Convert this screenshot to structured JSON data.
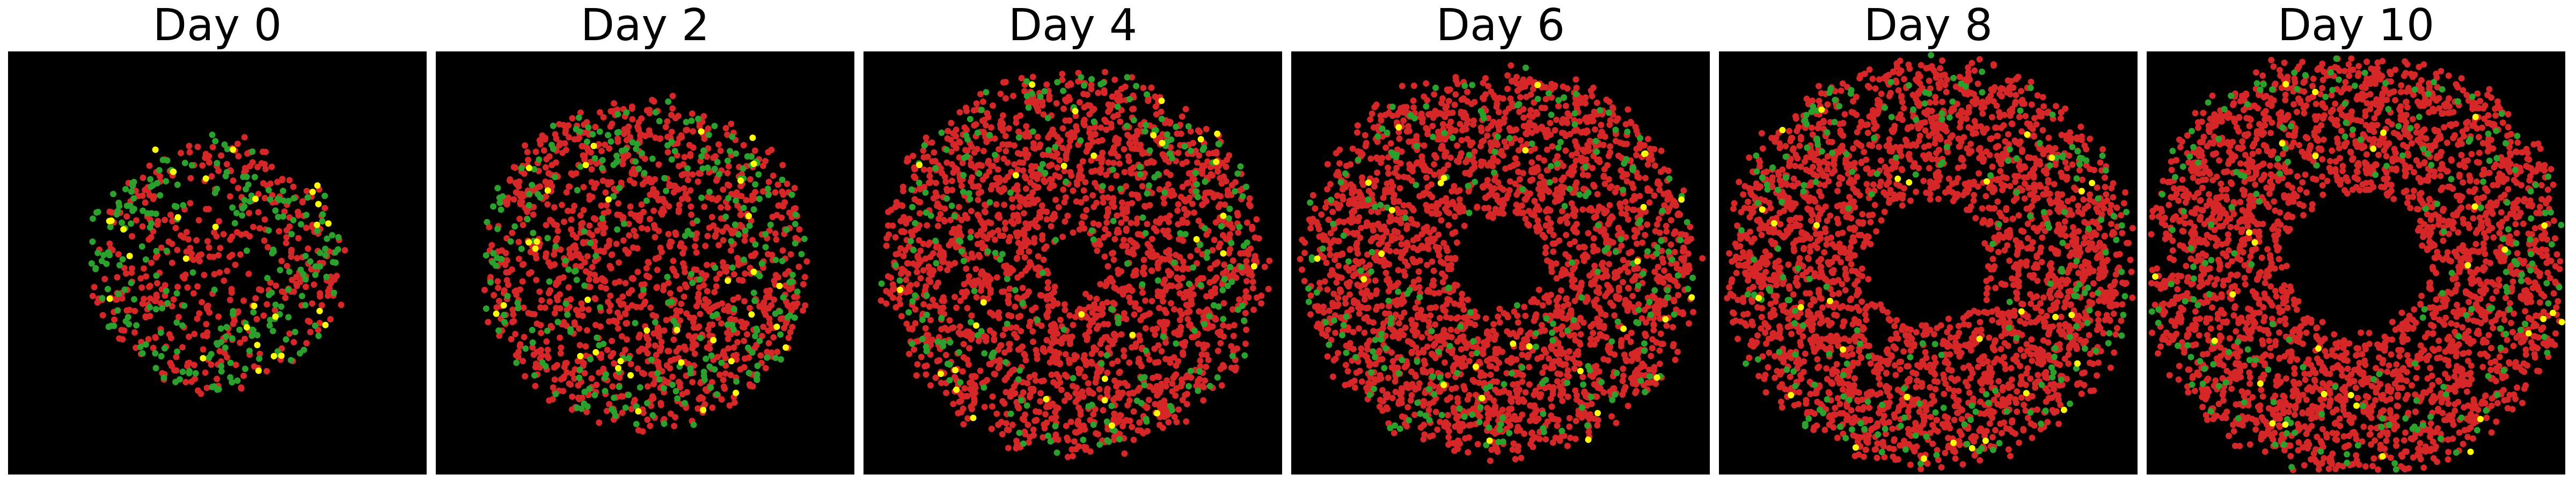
{
  "figure": {
    "background": "#ffffff",
    "plot_background": "#000000"
  },
  "legend_colors": {
    "red": "#d62728",
    "green": "#2ca02c",
    "yellow": "#ffff00"
  },
  "chart_data": [
    {
      "type": "scatter",
      "title": "Day 0",
      "grid": false,
      "axes": "off",
      "series": [
        {
          "color": "#d62728",
          "count": 420
        },
        {
          "color": "#2ca02c",
          "count": 230
        },
        {
          "color": "#ffff00",
          "count": 28
        }
      ],
      "cluster": {
        "center": [
          0.5,
          0.5
        ],
        "outer_radius": 0.3,
        "inner_hole_radius": 0.0
      }
    },
    {
      "type": "scatter",
      "title": "Day 2",
      "grid": false,
      "axes": "off",
      "series": [
        {
          "color": "#d62728",
          "count": 1250
        },
        {
          "color": "#2ca02c",
          "count": 280
        },
        {
          "color": "#ffff00",
          "count": 35
        }
      ],
      "cluster": {
        "center": [
          0.5,
          0.5
        ],
        "outer_radius": 0.39,
        "inner_hole_radius": 0.0
      }
    },
    {
      "type": "scatter",
      "title": "Day 4",
      "grid": false,
      "axes": "off",
      "series": [
        {
          "color": "#d62728",
          "count": 2100
        },
        {
          "color": "#2ca02c",
          "count": 250
        },
        {
          "color": "#ffff00",
          "count": 30
        }
      ],
      "cluster": {
        "center": [
          0.5,
          0.5
        ],
        "outer_radius": 0.45,
        "inner_hole_radius": 0.06
      }
    },
    {
      "type": "scatter",
      "title": "Day 6",
      "grid": false,
      "axes": "off",
      "series": [
        {
          "color": "#d62728",
          "count": 2400
        },
        {
          "color": "#2ca02c",
          "count": 230
        },
        {
          "color": "#ffff00",
          "count": 28
        }
      ],
      "cluster": {
        "center": [
          0.5,
          0.5
        ],
        "outer_radius": 0.46,
        "inner_hole_radius": 0.11
      }
    },
    {
      "type": "scatter",
      "title": "Day 8",
      "grid": false,
      "axes": "off",
      "series": [
        {
          "color": "#d62728",
          "count": 2600
        },
        {
          "color": "#2ca02c",
          "count": 220
        },
        {
          "color": "#ffff00",
          "count": 30
        }
      ],
      "cluster": {
        "center": [
          0.5,
          0.5
        ],
        "outer_radius": 0.48,
        "inner_hole_radius": 0.15
      }
    },
    {
      "type": "scatter",
      "title": "Day 10",
      "grid": false,
      "axes": "off",
      "series": [
        {
          "color": "#d62728",
          "count": 2800
        },
        {
          "color": "#2ca02c",
          "count": 210
        },
        {
          "color": "#ffff00",
          "count": 30
        }
      ],
      "cluster": {
        "center": [
          0.5,
          0.5
        ],
        "outer_radius": 0.5,
        "inner_hole_radius": 0.17
      }
    }
  ]
}
